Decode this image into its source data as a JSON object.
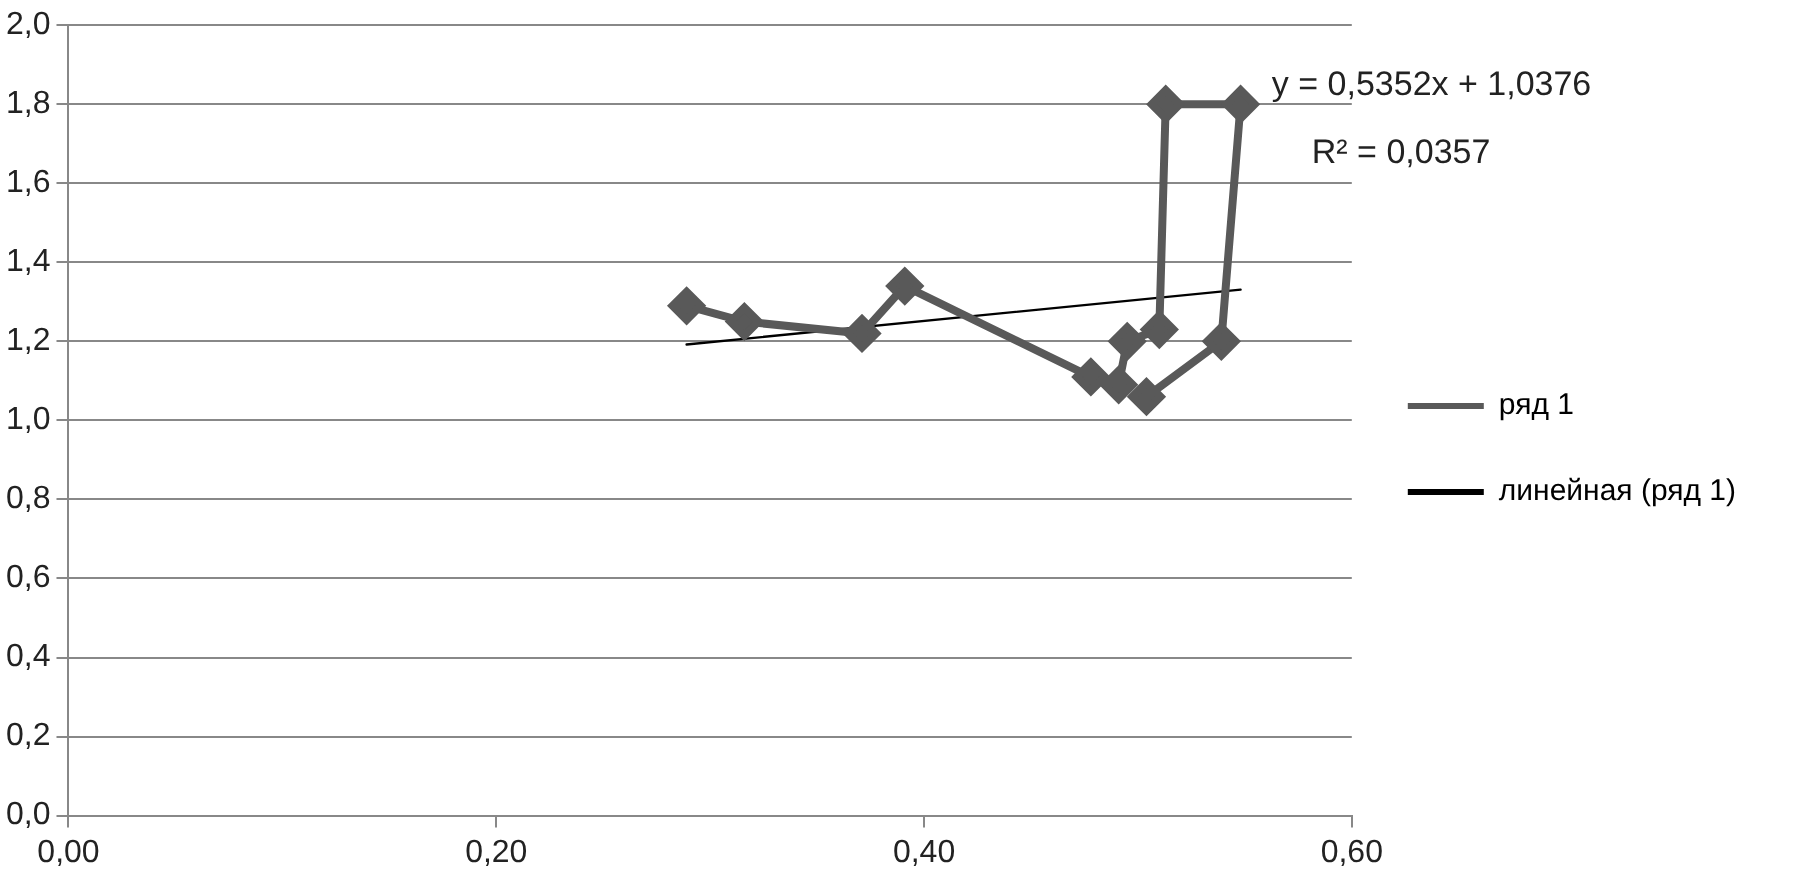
{
  "chart_data": {
    "type": "line",
    "xlim": [
      0,
      0.6
    ],
    "xticks": [
      {
        "value": 0,
        "label": "0,00"
      },
      {
        "value": 0.2,
        "label": "0,20"
      },
      {
        "value": 0.4,
        "label": "0,40"
      },
      {
        "value": 0.6,
        "label": "0,60"
      }
    ],
    "ylim": [
      0,
      2
    ],
    "yticks": [
      {
        "value": 0,
        "label": "0,0"
      },
      {
        "value": 0.2,
        "label": "0,2"
      },
      {
        "value": 0.4,
        "label": "0,4"
      },
      {
        "value": 0.6,
        "label": "0,6"
      },
      {
        "value": 0.8,
        "label": "0,8"
      },
      {
        "value": 1,
        "label": "1,0"
      },
      {
        "value": 1.2,
        "label": "1,2"
      },
      {
        "value": 1.4,
        "label": "1,4"
      },
      {
        "value": 1.6,
        "label": "1,6"
      },
      {
        "value": 1.8,
        "label": "1,8"
      },
      {
        "value": 2,
        "label": "2,0"
      }
    ],
    "grid": "y",
    "legend": "right",
    "series": [
      {
        "name": "ряд 1",
        "color": "#595959",
        "marker": "diamond",
        "x": [
          0.289,
          0.316,
          0.371,
          0.391,
          0.478,
          0.491,
          0.495,
          0.51,
          0.513,
          0.548,
          0.539,
          0.504
        ],
        "values": [
          1.29,
          1.25,
          1.22,
          1.34,
          1.11,
          1.09,
          1.2,
          1.23,
          1.8,
          1.8,
          1.2,
          1.06
        ]
      },
      {
        "name": "линейная (ряд 1)",
        "color": "#000000",
        "marker": "none",
        "x": [
          0.289,
          0.548
        ],
        "values": [
          1.192,
          1.331
        ]
      }
    ],
    "annotations": [
      "y = 0,5352x + 1,0376",
      "R² = 0,0357"
    ]
  }
}
